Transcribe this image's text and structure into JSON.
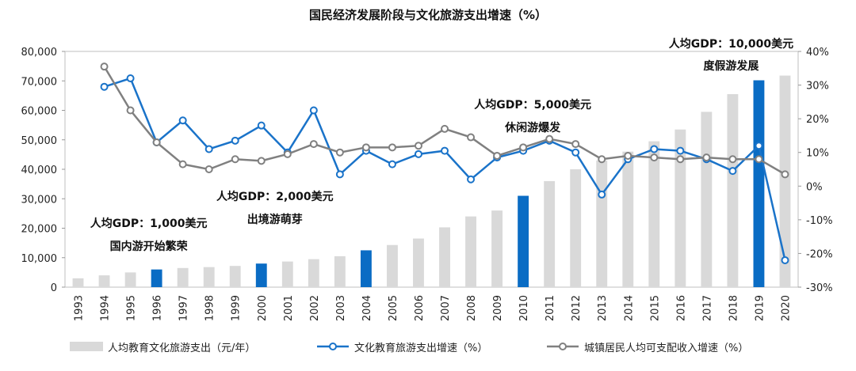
{
  "chart_data": {
    "type": "bar+line",
    "title": "国民经济发展阶段与文化旅游支出增速（%）",
    "categories": [
      "1993",
      "1994",
      "1995",
      "1996",
      "1997",
      "1998",
      "1999",
      "2000",
      "2001",
      "2002",
      "2003",
      "2004",
      "2005",
      "2006",
      "2007",
      "2008",
      "2009",
      "2010",
      "2011",
      "2012",
      "2013",
      "2014",
      "2015",
      "2016",
      "2017",
      "2018",
      "2019",
      "2020"
    ],
    "left_axis": {
      "ylim": [
        0,
        80000
      ],
      "ticks": [
        "0",
        "10,000",
        "20,000",
        "30,000",
        "40,000",
        "50,000",
        "60,000",
        "70,000",
        "80,000"
      ]
    },
    "right_axis": {
      "ylim": [
        -30,
        40
      ],
      "ticks": [
        "-30%",
        "-20%",
        "-10%",
        "0%",
        "10%",
        "20%",
        "30%",
        "40%"
      ]
    },
    "series": [
      {
        "name": "人均教育文化旅游支出（元/年）",
        "kind": "bar",
        "axis": "left",
        "color": "#d9d9d9",
        "highlight_color": "#0a6cc4",
        "highlight_years": [
          "1996",
          "2000",
          "2004",
          "2010",
          "2019"
        ],
        "values": [
          3000,
          4000,
          5000,
          6000,
          6500,
          6800,
          7200,
          8000,
          8700,
          9500,
          10500,
          12500,
          14300,
          16500,
          20300,
          24000,
          26000,
          31000,
          36000,
          40000,
          43000,
          46000,
          49500,
          53500,
          59500,
          65500,
          70200,
          71800
        ]
      },
      {
        "name": "文化教育旅游支出增速（%）",
        "kind": "line",
        "axis": "right",
        "color": "#1a73c9",
        "values": [
          null,
          29.5,
          32,
          13,
          19.5,
          11,
          13.5,
          18,
          10,
          22.5,
          3.5,
          10.5,
          6.5,
          9.5,
          10.5,
          2,
          8.5,
          10.5,
          13.5,
          10,
          -2.5,
          8,
          11,
          10.5,
          8,
          4.5,
          12,
          -22
        ]
      },
      {
        "name": "城镇居民人均可支配收入增速（%）",
        "kind": "line",
        "axis": "right",
        "color": "#808080",
        "values": [
          null,
          35.5,
          22.5,
          13,
          6.5,
          5,
          8,
          7.5,
          9.5,
          12.5,
          10,
          11.5,
          11.5,
          12,
          17,
          14.5,
          9,
          11.5,
          14,
          12.5,
          8,
          9,
          8.5,
          8,
          8.5,
          8,
          8,
          3.5
        ]
      }
    ],
    "annotations": [
      {
        "year": "1996",
        "lines": [
          "人均GDP：1,000美元",
          "国内游开始繁荣"
        ]
      },
      {
        "year": "2000",
        "lines": [
          "人均GDP：2,000美元",
          "出境游萌芽"
        ]
      },
      {
        "year": "2010",
        "lines": [
          "人均GDP：5,000美元",
          "休闲游爆发"
        ]
      },
      {
        "year": "2019",
        "lines": [
          "人均GDP：10,000美元",
          "度假游发展"
        ]
      }
    ],
    "legend_position": "bottom"
  }
}
